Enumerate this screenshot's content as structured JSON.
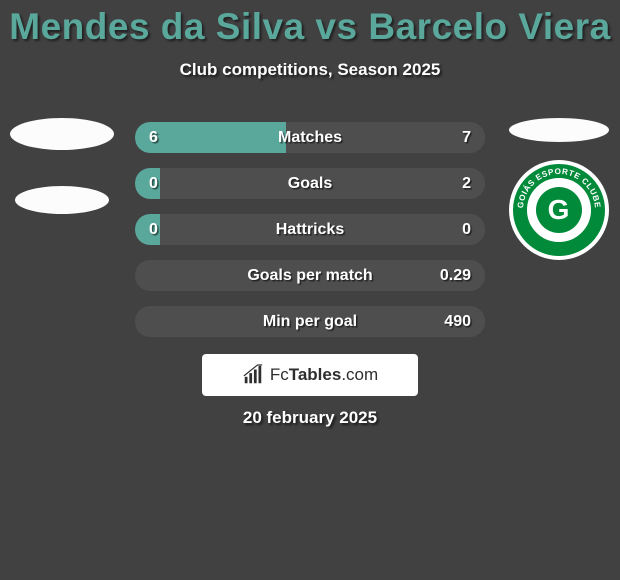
{
  "title": "Mendes da Silva vs Barcelo Viera",
  "subtitle": "Club competitions, Season 2025",
  "date": "20 february 2025",
  "colors": {
    "background": "#414142",
    "accent": "#5aa89b",
    "row_bg": "#4e4e4f",
    "text": "#ffffff",
    "logo_green": "#008a3a"
  },
  "brand": {
    "part1": "Fc",
    "part2": "Tables",
    "part3": ".com"
  },
  "logos": {
    "left": {
      "type": "placeholder-ellipses"
    },
    "right": {
      "name": "Goias Esporte Clube",
      "text_top": "GOIÁS ESPORTE CLUBE",
      "text_bottom": "6-4-1943",
      "letter": "G"
    }
  },
  "rows": [
    {
      "label": "Matches",
      "left_val": "6",
      "right_val": "7",
      "left_pct": 43,
      "right_pct": 0
    },
    {
      "label": "Goals",
      "left_val": "0",
      "right_val": "2",
      "left_pct": 7,
      "right_pct": 0
    },
    {
      "label": "Hattricks",
      "left_val": "0",
      "right_val": "0",
      "left_pct": 7,
      "right_pct": 0
    },
    {
      "label": "Goals per match",
      "left_val": "",
      "right_val": "0.29",
      "left_pct": 0,
      "right_pct": 0
    },
    {
      "label": "Min per goal",
      "left_val": "",
      "right_val": "490",
      "left_pct": 0,
      "right_pct": 0
    }
  ]
}
